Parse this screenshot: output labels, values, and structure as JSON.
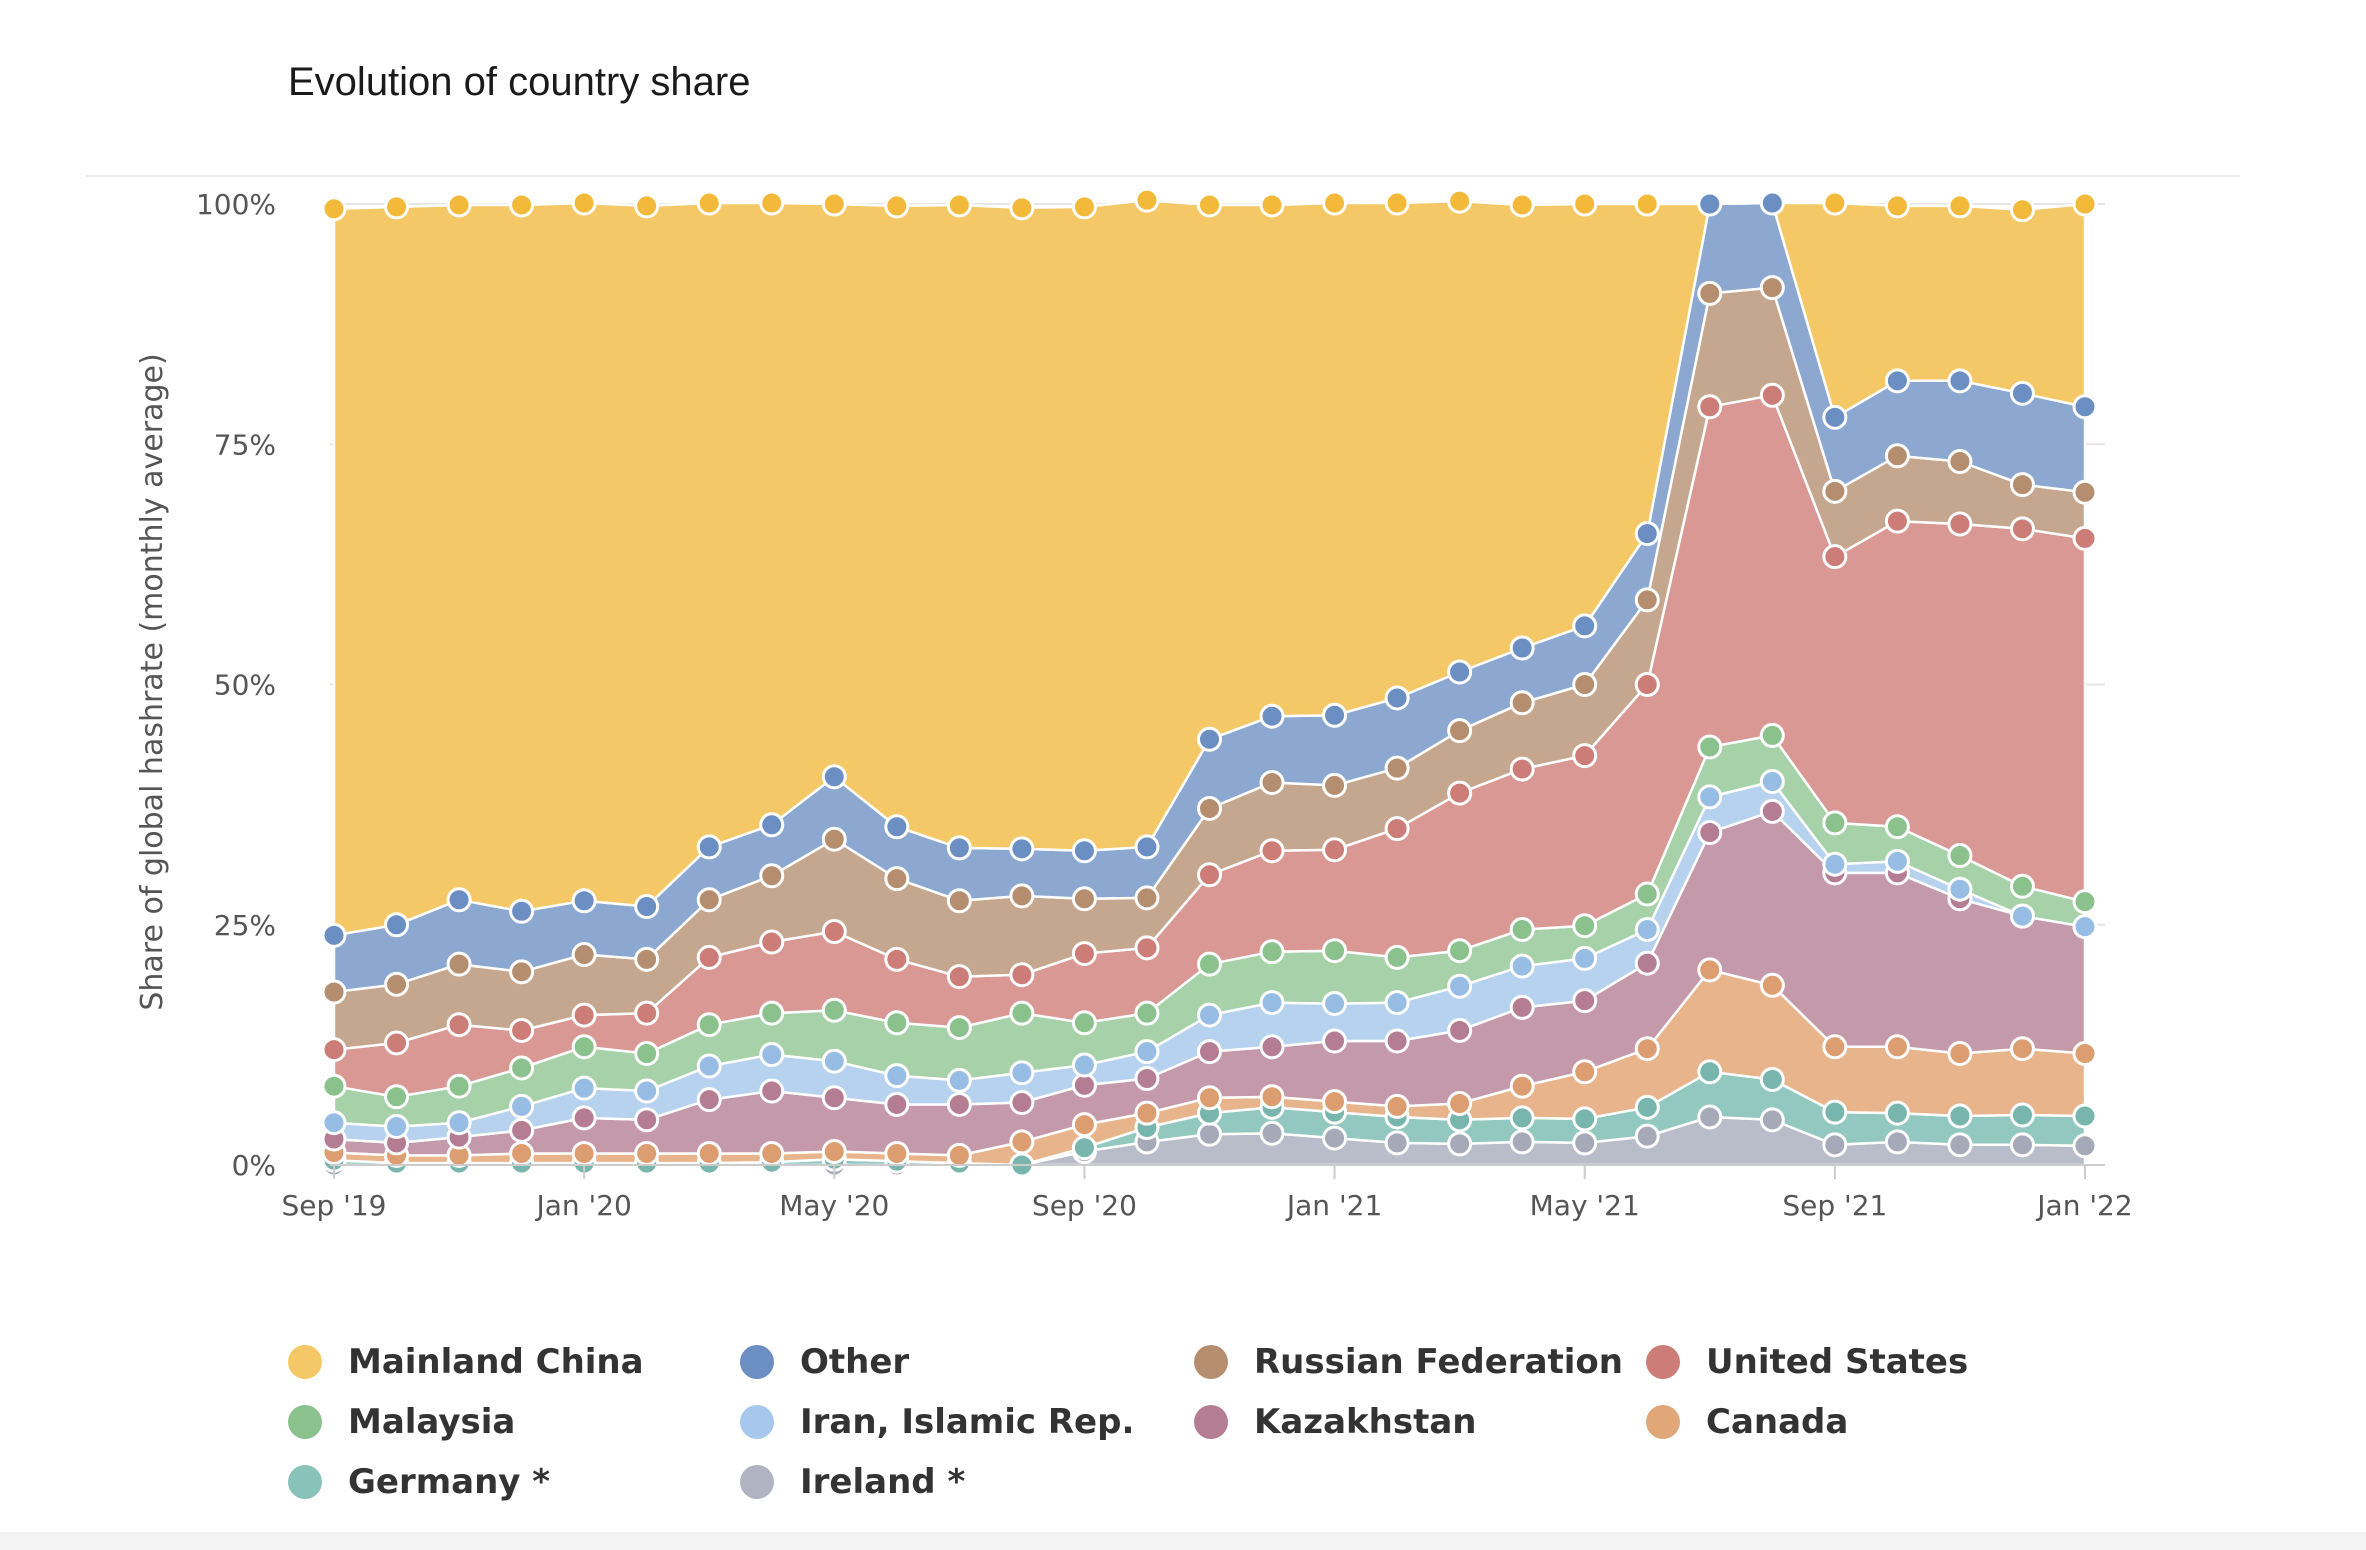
{
  "chart_data": {
    "type": "area",
    "stacked": true,
    "title": "Evolution of country share",
    "ylabel": "Share of global hashrate (monthly average)",
    "xlabel": "",
    "ylim": [
      0,
      100
    ],
    "y_ticks": [
      "0%",
      "25%",
      "50%",
      "75%",
      "100%"
    ],
    "y_tick_values": [
      0,
      25,
      50,
      75,
      100
    ],
    "x_tick_labels": [
      "Sep '19",
      "Jan '20",
      "May '20",
      "Sep '20",
      "Jan '21",
      "May '21",
      "Sep '21",
      "Jan '22"
    ],
    "x_tick_indices": [
      0,
      4,
      8,
      12,
      16,
      20,
      24,
      28
    ],
    "x": [
      "2019-09",
      "2019-10",
      "2019-11",
      "2019-12",
      "2020-01",
      "2020-02",
      "2020-03",
      "2020-04",
      "2020-05",
      "2020-06",
      "2020-07",
      "2020-08",
      "2020-09",
      "2020-10",
      "2020-11",
      "2020-12",
      "2021-01",
      "2021-02",
      "2021-03",
      "2021-04",
      "2021-05",
      "2021-06",
      "2021-07",
      "2021-08",
      "2021-09",
      "2021-10",
      "2021-11",
      "2021-12",
      "2022-01"
    ],
    "grid": true,
    "legend_position": "bottom",
    "series": [
      {
        "name": "Ireland *",
        "color": "#b9bcc9",
        "stroke": "#a6a9b8",
        "values": [
          0,
          0,
          0,
          0,
          0,
          0,
          0,
          0,
          0,
          0,
          0,
          0,
          1.4,
          2.4,
          3.2,
          3.3,
          2.8,
          2.3,
          2.2,
          2.4,
          2.3,
          3.0,
          5.0,
          4.7,
          2.1,
          2.4,
          2.1,
          2.1,
          2.0
        ]
      },
      {
        "name": "Germany *",
        "color": "#93c8c0",
        "stroke": "#78b5ac",
        "values": [
          0.5,
          0.2,
          0.2,
          0.2,
          0.2,
          0.2,
          0.2,
          0.3,
          0.6,
          0.4,
          0.2,
          0.0,
          0.4,
          1.5,
          2.2,
          2.7,
          2.7,
          2.7,
          2.5,
          2.5,
          2.5,
          3.0,
          4.7,
          4.2,
          3.4,
          3.0,
          3.0,
          3.1,
          3.1
        ]
      },
      {
        "name": "Canada",
        "color": "#e8b48c",
        "stroke": "#dc9e70",
        "values": [
          0.8,
          0.8,
          0.8,
          1.0,
          1.0,
          1.0,
          1.0,
          0.9,
          0.8,
          0.8,
          0.8,
          2.4,
          2.4,
          1.5,
          1.6,
          1.1,
          1.1,
          1.1,
          1.7,
          3.3,
          4.9,
          6.1,
          10.6,
          9.8,
          6.8,
          6.9,
          6.5,
          6.9,
          6.5
        ]
      },
      {
        "name": "Kazakhstan",
        "color": "#c49aaa",
        "stroke": "#b57d92",
        "values": [
          1.4,
          1.3,
          1.9,
          2.4,
          3.7,
          3.5,
          5.6,
          6.5,
          5.6,
          5.1,
          5.3,
          4.1,
          4.1,
          3.6,
          4.8,
          5.2,
          6.3,
          6.8,
          7.6,
          8.2,
          7.4,
          8.9,
          14.3,
          18.1,
          18.1,
          18.1,
          16.1,
          13.8,
          13.2
        ]
      },
      {
        "name": "Iran, Islamic Rep.",
        "color": "#b7d2ee",
        "stroke": "#97bde4",
        "values": [
          1.7,
          1.7,
          1.5,
          2.5,
          3.1,
          3.0,
          3.5,
          3.8,
          3.8,
          3.0,
          2.5,
          3.1,
          2.1,
          2.8,
          3.8,
          4.6,
          3.9,
          4.0,
          4.6,
          4.3,
          4.4,
          3.5,
          3.7,
          3.1,
          0.9,
          1.2,
          1.0,
          0,
          0
        ]
      },
      {
        "name": "Malaysia",
        "color": "#a7d1a8",
        "stroke": "#8bc18d",
        "values": [
          3.8,
          3.1,
          3.8,
          4.0,
          4.3,
          3.9,
          4.3,
          4.3,
          5.3,
          5.5,
          5.5,
          6.2,
          4.4,
          4.0,
          5.3,
          5.3,
          5.5,
          4.7,
          3.7,
          3.8,
          3.4,
          3.7,
          5.2,
          4.8,
          4.3,
          3.6,
          3.5,
          3.1,
          2.6
        ]
      },
      {
        "name": "United States",
        "color": "#d99894",
        "stroke": "#cd7d78",
        "values": [
          3.8,
          5.6,
          6.4,
          3.9,
          3.3,
          4.2,
          7.0,
          7.4,
          8.2,
          6.6,
          5.3,
          4.0,
          7.2,
          6.8,
          9.3,
          10.5,
          10.5,
          13.4,
          16.4,
          16.7,
          17.7,
          21.8,
          35.4,
          35.4,
          27.7,
          31.8,
          34.5,
          37.2,
          37.8
        ]
      },
      {
        "name": "Russian Federation",
        "color": "#c4a78e",
        "stroke": "#b58e6f",
        "values": [
          6.0,
          6.1,
          6.3,
          6.1,
          6.3,
          5.6,
          6.0,
          6.9,
          9.6,
          8.4,
          7.9,
          8.2,
          5.7,
          5.2,
          6.9,
          7.1,
          6.7,
          6.3,
          6.5,
          6.9,
          7.4,
          8.8,
          11.8,
          11.2,
          6.8,
          6.8,
          6.5,
          4.6,
          4.8
        ]
      },
      {
        "name": "Other",
        "color": "#8ca8d0",
        "stroke": "#6b8fc2",
        "values": [
          5.9,
          6.2,
          6.7,
          6.3,
          5.6,
          5.5,
          5.5,
          5.3,
          6.5,
          5.4,
          5.5,
          4.9,
          5.0,
          5.3,
          7.2,
          6.9,
          7.3,
          7.3,
          6.1,
          5.7,
          6.1,
          6.9,
          9.3,
          8.8,
          7.7,
          7.8,
          8.4,
          9.5,
          8.9
        ]
      },
      {
        "name": "Mainland China",
        "color": "#f5c867",
        "stroke": "#f2b93b",
        "values": [
          75.6,
          74.7,
          72.3,
          73.5,
          72.6,
          72.9,
          67.0,
          64.7,
          59.6,
          64.6,
          66.9,
          66.7,
          67.0,
          67.3,
          55.6,
          53.2,
          53.3,
          51.5,
          49.0,
          46.1,
          43.9,
          34.3,
          0,
          0,
          22.3,
          18.2,
          18.2,
          19.1,
          21.1
        ]
      }
    ]
  },
  "legend": [
    {
      "label": "Mainland China",
      "color": "#f5c867"
    },
    {
      "label": "Other",
      "color": "#6b8fc2"
    },
    {
      "label": "Russian Federation",
      "color": "#b58e6f"
    },
    {
      "label": "United States",
      "color": "#cd7d78"
    },
    {
      "label": "Malaysia",
      "color": "#8bc18d"
    },
    {
      "label": "Iran, Islamic Rep.",
      "color": "#a5c8ec"
    },
    {
      "label": "Kazakhstan",
      "color": "#b57d92"
    },
    {
      "label": "Canada",
      "color": "#e0a878"
    },
    {
      "label": "Germany *",
      "color": "#88c2b9"
    },
    {
      "label": "Ireland *",
      "color": "#b0b3c2"
    }
  ]
}
